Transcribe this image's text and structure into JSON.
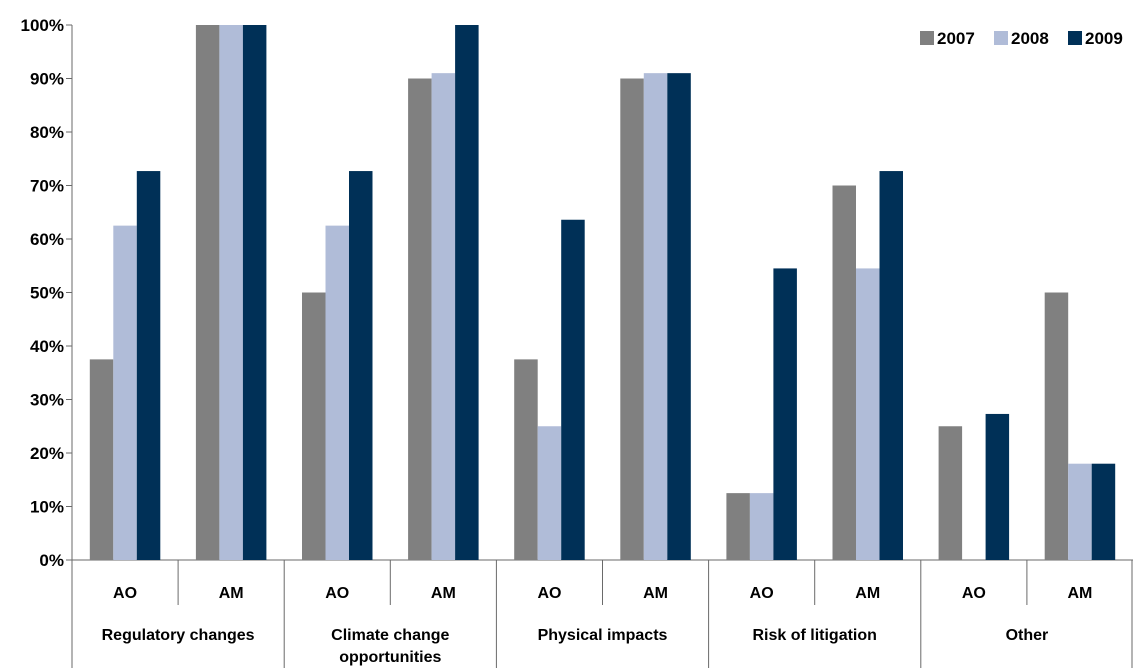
{
  "chart_data": {
    "type": "bar",
    "title": "",
    "xlabel": "",
    "ylabel": "",
    "ylim": [
      0,
      100
    ],
    "y_ticks": [
      "0%",
      "10%",
      "20%",
      "30%",
      "40%",
      "50%",
      "60%",
      "70%",
      "80%",
      "90%",
      "100%"
    ],
    "groups": [
      {
        "label": "Regulatory changes",
        "subs": [
          "AO",
          "AM"
        ]
      },
      {
        "label": "Climate change opportunities",
        "subs": [
          "AO",
          "AM"
        ]
      },
      {
        "label": "Physical impacts",
        "subs": [
          "AO",
          "AM"
        ]
      },
      {
        "label": "Risk of litigation",
        "subs": [
          "AO",
          "AM"
        ]
      },
      {
        "label": "Other",
        "subs": [
          "AO",
          "AM"
        ]
      }
    ],
    "categories": [
      "Regulatory changes AO",
      "Regulatory changes AM",
      "Climate change opportunities AO",
      "Climate change opportunities AM",
      "Physical impacts AO",
      "Physical impacts AM",
      "Risk of litigation AO",
      "Risk of litigation AM",
      "Other AO",
      "Other AM"
    ],
    "series": [
      {
        "name": "2007",
        "color": "#808080",
        "values": [
          37.5,
          100,
          50,
          90,
          37.5,
          90,
          12.5,
          70,
          25,
          50
        ]
      },
      {
        "name": "2008",
        "color": "#b0bcd8",
        "values": [
          62.5,
          100,
          62.5,
          91,
          25,
          91,
          12.5,
          54.5,
          0,
          18
        ]
      },
      {
        "name": "2009",
        "color": "#003057",
        "values": [
          72.7,
          100,
          72.7,
          100,
          63.6,
          91,
          54.5,
          72.7,
          27.3,
          18
        ]
      }
    ],
    "grid": false,
    "legend_position": "top-right"
  }
}
